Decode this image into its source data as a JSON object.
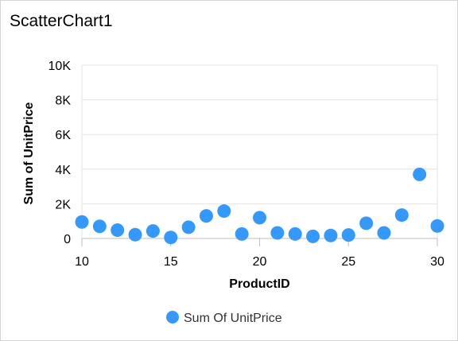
{
  "chart_data": {
    "type": "scatter",
    "title": "ScatterChart1",
    "xlabel": "ProductID",
    "ylabel": "Sum of UnitPrice",
    "xlim": [
      10,
      30
    ],
    "ylim": [
      0,
      10000
    ],
    "x_ticks": [
      10,
      15,
      20,
      25,
      30
    ],
    "y_ticks": [
      0,
      2000,
      4000,
      6000,
      8000,
      10000
    ],
    "y_tick_labels": [
      "0",
      "2K",
      "4K",
      "6K",
      "8K",
      "10K"
    ],
    "grid": true,
    "legend_position": "bottom",
    "series": [
      {
        "name": "Sum Of UnitPrice",
        "color": "#3399ff",
        "x": [
          10,
          11,
          12,
          13,
          14,
          15,
          16,
          17,
          18,
          19,
          20,
          21,
          22,
          23,
          24,
          25,
          26,
          27,
          28,
          29,
          30
        ],
        "y": [
          950,
          700,
          480,
          220,
          430,
          60,
          650,
          1300,
          1580,
          260,
          1200,
          320,
          260,
          120,
          170,
          200,
          880,
          320,
          1350,
          3700,
          720
        ]
      }
    ]
  }
}
